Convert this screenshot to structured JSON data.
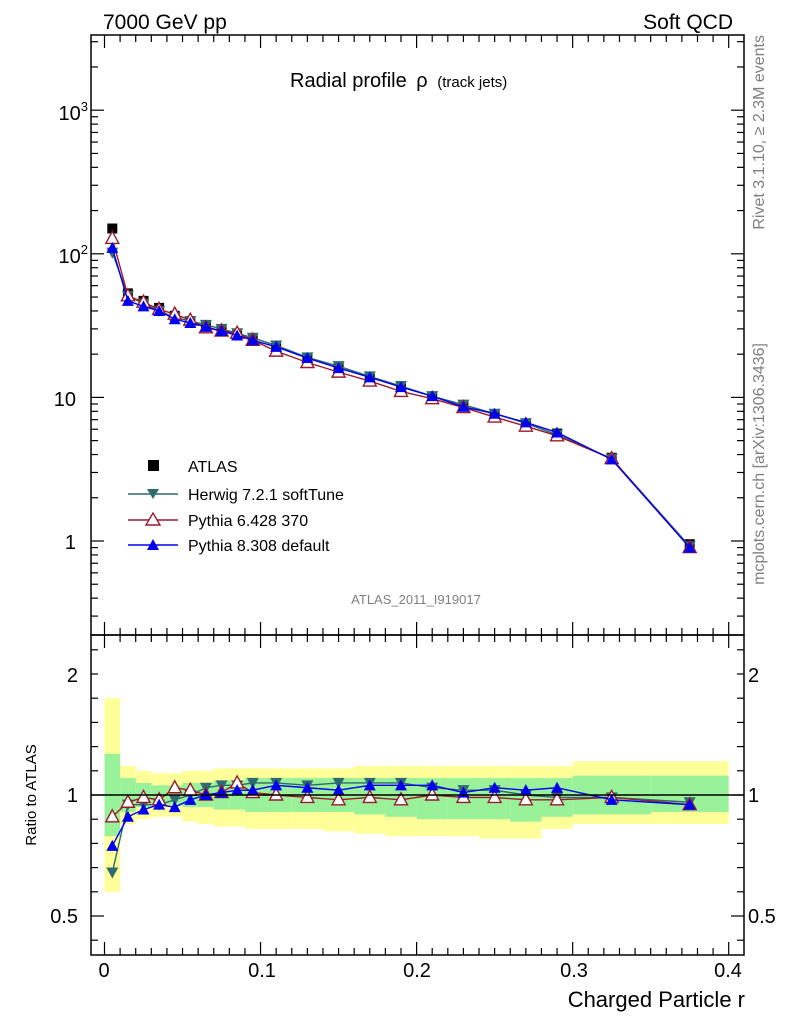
{
  "header": {
    "left": "7000 GeV pp",
    "right": "Soft QCD"
  },
  "side_text": {
    "rivet": "Rivet 3.1.10, ≥ 2.3M events",
    "mcplots": "mcplots.cern.ch [arXiv:1306.3436]"
  },
  "watermark": "ATLAS_2011_I919017",
  "colors": {
    "herwig": "#2e6b6e",
    "pythia6": "#9b1b2e",
    "pythia8": "#0000ee",
    "band_inner": "#99f299",
    "band_outer": "#ffff99"
  },
  "chart_data": [
    {
      "type": "line",
      "title_main": "Radial profile",
      "title_symbol": "ρ",
      "title_suffix": "(track jets)",
      "yscale": "log",
      "ylim": [
        0.18,
        3300
      ],
      "xlim": [
        -0.01,
        0.4
      ],
      "y_tick_labels": [
        "10³",
        "10²",
        "10",
        "1"
      ],
      "x": [
        0.005,
        0.015,
        0.025,
        0.035,
        0.045,
        0.055,
        0.065,
        0.075,
        0.085,
        0.095,
        0.11,
        0.13,
        0.15,
        0.17,
        0.19,
        0.21,
        0.23,
        0.25,
        0.27,
        0.29,
        0.325,
        0.375
      ],
      "series": [
        {
          "name": "ATLAS",
          "marker": "square",
          "values": [
            150,
            53,
            47,
            42,
            37,
            34,
            31,
            29,
            27,
            25,
            22,
            18.5,
            16,
            13.5,
            11.5,
            10,
            8.7,
            7.6,
            6.6,
            5.6,
            3.8,
            0.95
          ]
        },
        {
          "name": "Herwig 7.2.1 softTune",
          "marker": "triangle-down",
          "values": [
            102,
            51,
            45,
            40,
            36,
            34,
            32,
            30,
            28,
            26,
            23,
            19,
            16.5,
            14,
            12,
            10.2,
            8.9,
            7.7,
            6.6,
            5.5,
            3.75,
            0.92
          ]
        },
        {
          "name": "Pythia 6.428 370",
          "marker": "triangle-up-open",
          "values": [
            128,
            51,
            46,
            41,
            38,
            34.5,
            30.5,
            29,
            28,
            25,
            21,
            17.5,
            15,
            13,
            11,
            9.8,
            8.5,
            7.3,
            6.3,
            5.4,
            3.75,
            0.9
          ]
        },
        {
          "name": "Pythia 8.308 default",
          "marker": "triangle-up",
          "values": [
            110,
            47,
            43,
            40,
            35,
            33,
            31,
            29,
            27,
            25,
            22.5,
            18.8,
            16,
            13.8,
            11.8,
            10.2,
            8.6,
            7.7,
            6.7,
            5.7,
            3.7,
            0.9
          ]
        }
      ],
      "legend": "left"
    },
    {
      "type": "line",
      "ylabel": "Ratio to ATLAS",
      "xlabel": "Charged Particle r",
      "ylim": [
        0.3,
        2.3
      ],
      "xlim": [
        -0.01,
        0.4
      ],
      "y_tick_labels": [
        "0.5",
        "1",
        "2"
      ],
      "x_tick_labels": [
        "0",
        "0.1",
        "0.2",
        "0.3",
        "0.4"
      ],
      "band_edges": [
        0,
        0.01,
        0.02,
        0.03,
        0.04,
        0.05,
        0.06,
        0.07,
        0.08,
        0.09,
        0.1,
        0.12,
        0.14,
        0.16,
        0.18,
        0.2,
        0.22,
        0.24,
        0.26,
        0.28,
        0.3,
        0.35,
        0.4
      ],
      "band_inner": [
        [
          0.83,
          1.17
        ],
        [
          0.93,
          1.07
        ],
        [
          0.95,
          1.05
        ],
        [
          0.96,
          1.04
        ],
        [
          0.96,
          1.04
        ],
        [
          0.95,
          1.05
        ],
        [
          0.95,
          1.05
        ],
        [
          0.94,
          1.06
        ],
        [
          0.94,
          1.06
        ],
        [
          0.93,
          1.07
        ],
        [
          0.93,
          1.07
        ],
        [
          0.93,
          1.07
        ],
        [
          0.93,
          1.07
        ],
        [
          0.92,
          1.07
        ],
        [
          0.91,
          1.07
        ],
        [
          0.9,
          1.07
        ],
        [
          0.9,
          1.07
        ],
        [
          0.9,
          1.07
        ],
        [
          0.89,
          1.07
        ],
        [
          0.91,
          1.07
        ],
        [
          0.92,
          1.08
        ],
        [
          0.93,
          1.08
        ]
      ],
      "band_outer": [
        [
          0.6,
          1.4
        ],
        [
          0.88,
          1.12
        ],
        [
          0.9,
          1.1
        ],
        [
          0.91,
          1.09
        ],
        [
          0.91,
          1.09
        ],
        [
          0.89,
          1.1
        ],
        [
          0.88,
          1.1
        ],
        [
          0.87,
          1.11
        ],
        [
          0.87,
          1.11
        ],
        [
          0.86,
          1.11
        ],
        [
          0.86,
          1.11
        ],
        [
          0.86,
          1.11
        ],
        [
          0.85,
          1.11
        ],
        [
          0.84,
          1.12
        ],
        [
          0.83,
          1.12
        ],
        [
          0.83,
          1.12
        ],
        [
          0.83,
          1.12
        ],
        [
          0.82,
          1.12
        ],
        [
          0.82,
          1.12
        ],
        [
          0.86,
          1.12
        ],
        [
          0.88,
          1.14
        ],
        [
          0.88,
          1.14
        ]
      ],
      "x": [
        0.005,
        0.015,
        0.025,
        0.035,
        0.045,
        0.055,
        0.065,
        0.075,
        0.085,
        0.095,
        0.11,
        0.13,
        0.15,
        0.17,
        0.19,
        0.21,
        0.23,
        0.25,
        0.27,
        0.29,
        0.325,
        0.375
      ],
      "series": [
        {
          "name": "Herwig 7.2.1 softTune",
          "marker": "triangle-down",
          "values": [
            0.68,
            0.96,
            0.96,
            0.96,
            0.98,
            1.0,
            1.03,
            1.04,
            1.04,
            1.05,
            1.05,
            1.04,
            1.05,
            1.05,
            1.05,
            1.03,
            1.02,
            1.02,
            1.0,
            0.99,
            0.99,
            0.97
          ]
        },
        {
          "name": "Pythia 6.428 370",
          "marker": "triangle-up-open",
          "values": [
            0.91,
            0.97,
            0.99,
            0.98,
            1.03,
            1.02,
            1.0,
            1.01,
            1.05,
            1.01,
            1.0,
            0.99,
            0.98,
            0.99,
            0.98,
            1.0,
            0.99,
            0.99,
            0.98,
            0.98,
            0.99,
            0.96
          ]
        },
        {
          "name": "Pythia 8.308 default",
          "marker": "triangle-up",
          "values": [
            0.79,
            0.91,
            0.94,
            0.96,
            0.95,
            0.98,
            1.0,
            1.01,
            1.02,
            1.02,
            1.04,
            1.03,
            1.02,
            1.04,
            1.04,
            1.04,
            1.01,
            1.03,
            1.02,
            1.03,
            0.98,
            0.96
          ]
        }
      ]
    }
  ]
}
